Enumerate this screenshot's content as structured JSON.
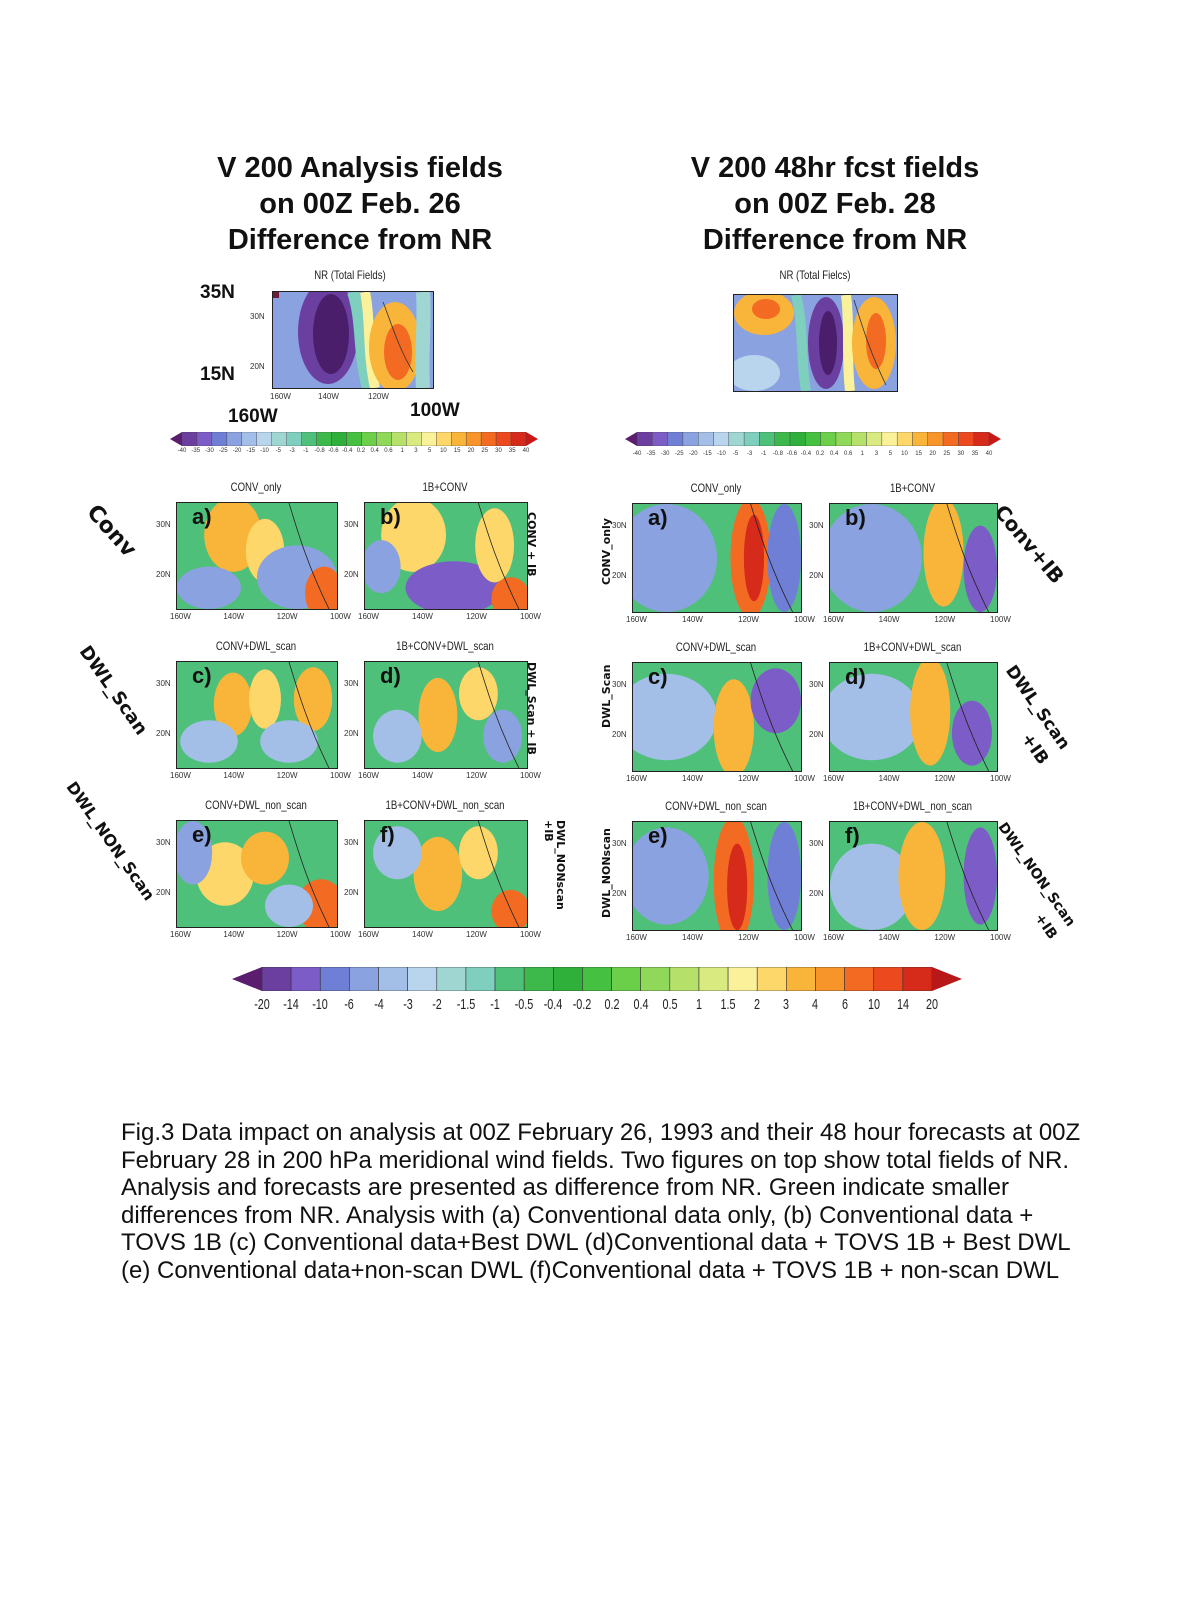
{
  "headings": {
    "left": "V 200 Analysis fields\non 00Z Feb.  26\nDifference from NR",
    "right": "V 200 48hr fcst fields\non 00Z Feb.  28\nDifference from NR"
  },
  "nr_panel_title": "NR (Total Fields)",
  "nr_panel_title_right": "NR (Total Fielcs)",
  "nr_axis_labels": {
    "lat_top": "35N",
    "lat_bottom": "15N",
    "lon_left": "160W",
    "lon_right": "100W"
  },
  "map_ticks": {
    "lat": [
      "30N",
      "20N"
    ],
    "lon_left": [
      "160W",
      "140W",
      "120W",
      "100W"
    ]
  },
  "panels": [
    {
      "side": "left",
      "letter": "a)",
      "title": "CONV_only"
    },
    {
      "side": "left",
      "letter": "b)",
      "title": "1B+CONV"
    },
    {
      "side": "left",
      "letter": "c)",
      "title": "CONV+DWL_scan"
    },
    {
      "side": "left",
      "letter": "d)",
      "title": "1B+CONV+DWL_scan"
    },
    {
      "side": "left",
      "letter": "e)",
      "title": "CONV+DWL_non_scan"
    },
    {
      "side": "left",
      "letter": "f)",
      "title": "1B+CONV+DWL_non_scan"
    },
    {
      "side": "right",
      "letter": "a)",
      "title": "CONV_only"
    },
    {
      "side": "right",
      "letter": "b)",
      "title": "1B+CONV"
    },
    {
      "side": "right",
      "letter": "c)",
      "title": "CONV+DWL_scan"
    },
    {
      "side": "right",
      "letter": "d)",
      "title": "1B+CONV+DWL_scan"
    },
    {
      "side": "right",
      "letter": "e)",
      "title": "CONV+DWL_non_scan"
    },
    {
      "side": "right",
      "letter": "f)",
      "title": "1B+CONV+DWL_non_scan"
    }
  ],
  "row_labels": {
    "left": [
      "Conv",
      "DWL_Scan",
      "DWL_NON_Scan"
    ],
    "left_inner": [
      "CONV + IB",
      "DWL_Scan + IB",
      "DWL_NONscan\n+IB"
    ],
    "right_inner": [
      "CONV_only",
      "DWL_Scan",
      "DWL_NONscan"
    ],
    "right": [
      "Conv+IB",
      "DWL_Scan\n+IB",
      "DWL_NON_Scan\n+IB"
    ]
  },
  "colorbar": {
    "labels": [
      "-20",
      "-14",
      "-10",
      "-6",
      "-4",
      "-3",
      "-2",
      "-1.5",
      "-1",
      "-0.5",
      "-0.4",
      "-0.2",
      "0.2",
      "0.4",
      "0.5",
      "1",
      "1.5",
      "2",
      "3",
      "4",
      "6",
      "10",
      "14",
      "20"
    ],
    "colors": [
      "#5b1e6e",
      "#6a3fa0",
      "#7c5cc7",
      "#6f7fd6",
      "#8aa2e0",
      "#a3bfe8",
      "#b9d5ee",
      "#9fd6d2",
      "#7fcfbf",
      "#4fc07a",
      "#3db84a",
      "#2fb03a",
      "#45c040",
      "#6bcf4a",
      "#8fd85a",
      "#b5e06a",
      "#d9ea80",
      "#fbf19a",
      "#fdd76a",
      "#f9b43a",
      "#f7952b",
      "#f36a22",
      "#ec4a1e",
      "#d62a1b",
      "#b81818"
    ]
  },
  "nr_colorbar_labels": [
    "-40",
    "-35",
    "-30",
    "-25",
    "-20",
    "-15",
    "-10",
    "-5",
    "-3",
    "-1",
    "-0.8",
    "-0.6",
    "-0.4",
    "0.2",
    "0.4",
    "0.6",
    "1",
    "3",
    "5",
    "10",
    "15",
    "20",
    "25",
    "30",
    "35",
    "40"
  ],
  "caption": "Fig.3  Data impact on analysis at  00Z February 26, 1993 and their 48 hour forecasts at 00Z February 28 in 200 hPa meridional wind fields.  Two figures on top show total fields of NR.   Analysis and forecasts are presented as difference from NR.   Green indicate smaller differences from NR.  Analysis with (a) Conventional data only, (b) Conventional data + TOVS 1B (c) Conventional data+Best DWL (d)Conventional data + TOVS 1B + Best DWL  (e) Conventional data+non-scan DWL (f)Conventional data + TOVS 1B + non-scan DWL"
}
